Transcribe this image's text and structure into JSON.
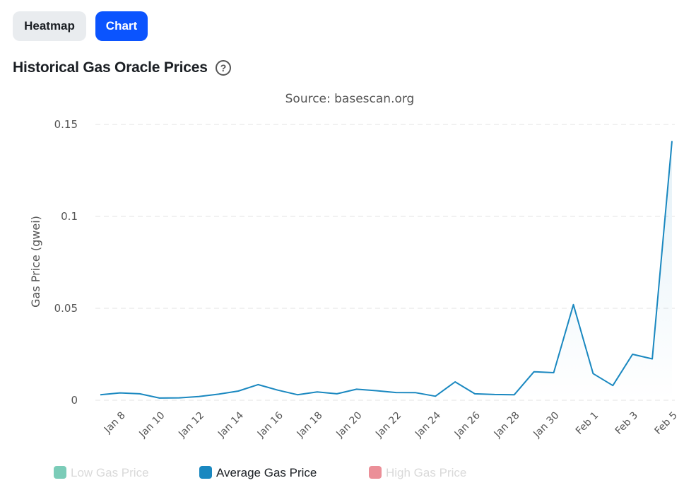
{
  "buttons": [
    "Heatmap",
    "Chart"
  ],
  "title": "Historical Gas Oracle Prices",
  "chart_data": {
    "type": "line",
    "subtitle": "Source: basescan.org",
    "y_label": "Gas Price (gwei)",
    "categories": [
      null,
      "Jan 8",
      null,
      "Jan 10",
      null,
      "Jan 12",
      null,
      "Jan 14",
      null,
      "Jan 16",
      null,
      "Jan 18",
      null,
      "Jan 20",
      null,
      "Jan 22",
      null,
      "Jan 24",
      null,
      "Jan 26",
      null,
      "Jan 28",
      null,
      "Jan 30",
      null,
      "Feb 1",
      null,
      "Feb 3",
      null,
      "Feb 5"
    ],
    "series": [
      {
        "name": "Low Gas Price",
        "color": "#10a37f",
        "hidden": true
      },
      {
        "name": "Average Gas Price",
        "color": "#1a88c0",
        "values": [
          0.003,
          0.004,
          0.0035,
          0.0012,
          0.0013,
          0.002,
          0.0033,
          0.005,
          0.0085,
          0.0055,
          0.003,
          0.0045,
          0.0035,
          0.006,
          0.0052,
          0.0042,
          0.0041,
          0.0022,
          0.01,
          0.0035,
          0.0031,
          0.003,
          0.0155,
          0.015,
          0.052,
          0.0145,
          0.008,
          0.025,
          0.0225,
          0.141
        ]
      },
      {
        "name": "High Gas Price",
        "color": "#dc3545",
        "hidden": true
      }
    ],
    "ylim": [
      0,
      0.15
    ],
    "yticks": [
      0,
      0.05,
      0.1,
      0.15
    ],
    "grid": true
  }
}
